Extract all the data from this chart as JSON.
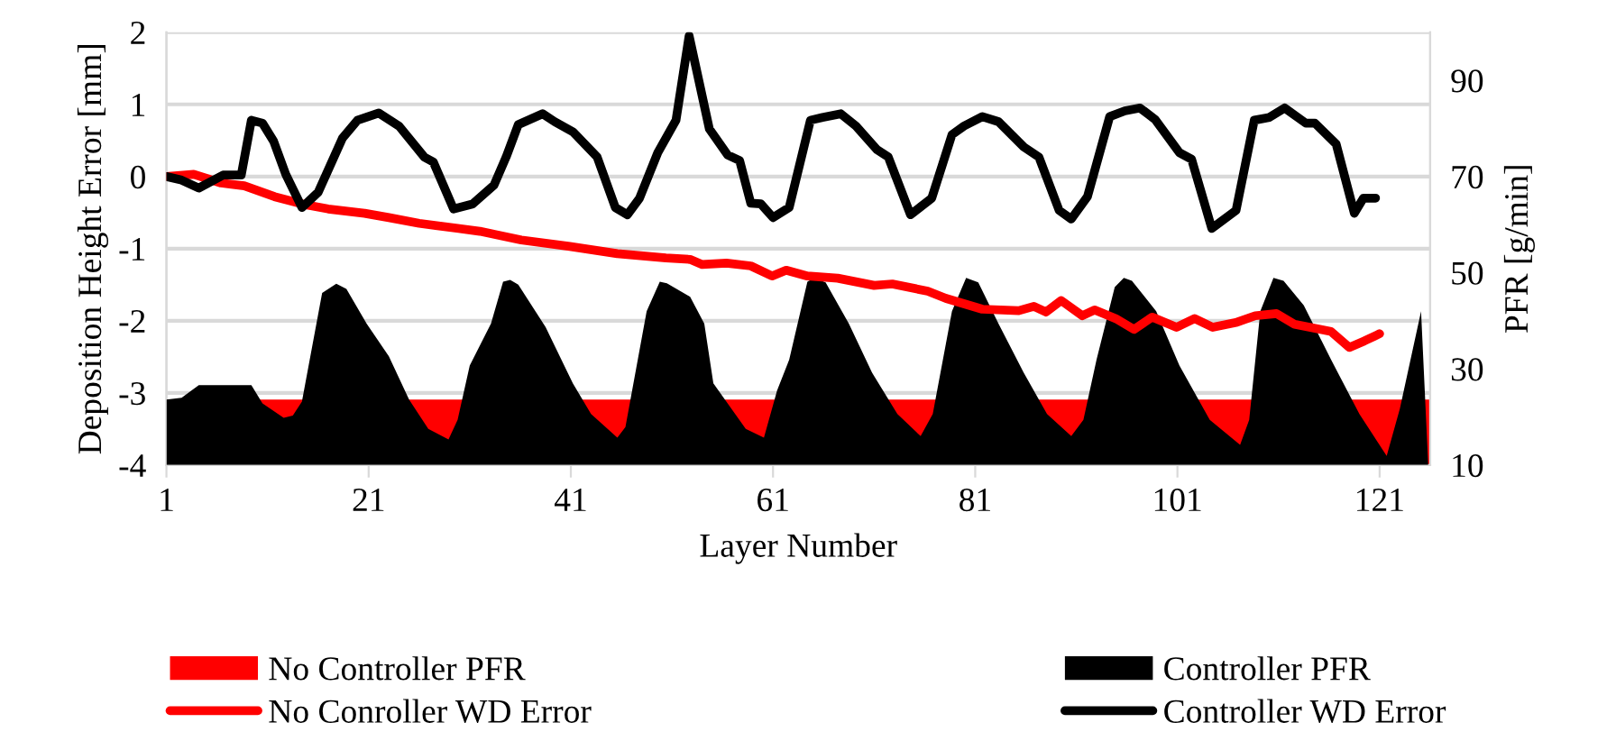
{
  "chart_data": {
    "type": "line",
    "xlabel": "Layer Number",
    "ylabel": "Deposition Height Error [mm]",
    "y2label": "PFR [g/min]",
    "xlim": [
      1,
      126
    ],
    "xticks": [
      1,
      21,
      41,
      61,
      81,
      101,
      121
    ],
    "ylim": [
      -4,
      2
    ],
    "yticks": [
      -4,
      -3,
      -2,
      -1,
      0,
      1,
      2
    ],
    "y2lim": [
      10,
      100
    ],
    "y2ticks": [
      10,
      30,
      50,
      70,
      90
    ],
    "grid": "y",
    "legend": "bottom",
    "series": [
      {
        "name": "No Controller PFR",
        "type": "area",
        "axis": "y2",
        "color": "#ff0000",
        "x": [
          1,
          126
        ],
        "values": [
          23.6,
          23.6
        ]
      },
      {
        "name": "Controller PFR",
        "type": "area",
        "axis": "y2",
        "color": "#000000",
        "x": [
          1,
          2.5,
          4.2,
          9.4,
          10.5,
          12.6,
          13.5,
          14.4,
          16.4,
          17.8,
          18.8,
          20.8,
          23,
          25,
          26.9,
          28.9,
          29.8,
          31,
          33.1,
          34.3,
          35,
          35.8,
          38.5,
          41.2,
          43,
          45.6,
          46.4,
          48.5,
          49.8,
          50.5,
          52.8,
          54.2,
          55.1,
          58.3,
          60.1,
          61.4,
          62.6,
          64.4,
          65.1,
          66.2,
          68.5,
          70.8,
          73.3,
          75.6,
          76.8,
          78.7,
          80.1,
          81.3,
          83.3,
          85.8,
          88.1,
          90.5,
          91.7,
          93,
          94.8,
          95.7,
          96.5,
          98.9,
          101.2,
          104.2,
          107.2,
          108.1,
          109.2,
          110.5,
          111.5,
          113.5,
          116.2,
          119,
          121.7,
          123,
          125.1,
          125.8
        ],
        "values": [
          23.6,
          24,
          26.6,
          26.6,
          22.8,
          19.8,
          20.3,
          23.2,
          45.8,
          47.7,
          46.6,
          39.4,
          32.6,
          23.6,
          17.5,
          15.3,
          19.4,
          30.7,
          39.4,
          48.1,
          48.5,
          47.5,
          38.7,
          27,
          20.6,
          15.7,
          17.9,
          42,
          48.1,
          47.8,
          45,
          39.4,
          27,
          17.5,
          15.7,
          25.5,
          31.9,
          48.1,
          48.9,
          48,
          39.4,
          29.2,
          20.6,
          16,
          20.6,
          42,
          48.9,
          48,
          39.4,
          29.2,
          20.6,
          16,
          19.4,
          31.9,
          47,
          48.9,
          48.3,
          42,
          30.7,
          19.4,
          14.2,
          19.4,
          42,
          48.9,
          48.3,
          43.2,
          31.9,
          20.6,
          11.9,
          21.7,
          42,
          10.4
        ]
      },
      {
        "name": "No Conroller WD Error",
        "axis": "y",
        "color": "#ff0000",
        "x": [
          1,
          3.7,
          6.4,
          8.7,
          11.7,
          14.7,
          17,
          20.6,
          23,
          26,
          32,
          36.1,
          40.9,
          45.6,
          50.4,
          52.8,
          54,
          56.4,
          58.8,
          60.9,
          62.3,
          64.4,
          67.4,
          71,
          72.8,
          76.3,
          78.1,
          81.7,
          85.3,
          86.8,
          88,
          89.5,
          91.6,
          92.8,
          94.9,
          96.7,
          98.5,
          100.9,
          102.7,
          104.5,
          106.9,
          108.7,
          110.8,
          112.6,
          116.2,
          118,
          119.5,
          121
        ],
        "values": [
          0,
          0.03,
          -0.09,
          -0.13,
          -0.28,
          -0.39,
          -0.45,
          -0.51,
          -0.57,
          -0.65,
          -0.76,
          -0.88,
          -0.97,
          -1.07,
          -1.13,
          -1.15,
          -1.22,
          -1.2,
          -1.24,
          -1.38,
          -1.3,
          -1.38,
          -1.41,
          -1.51,
          -1.49,
          -1.59,
          -1.69,
          -1.84,
          -1.86,
          -1.8,
          -1.88,
          -1.72,
          -1.93,
          -1.85,
          -1.97,
          -2.12,
          -1.95,
          -2.09,
          -1.97,
          -2.09,
          -2.02,
          -1.93,
          -1.9,
          -2.05,
          -2.15,
          -2.37,
          -2.28,
          -2.18
        ]
      },
      {
        "name": "Controller WD Error",
        "axis": "y",
        "color": "#000000",
        "x": [
          1,
          2.5,
          4.2,
          6.6,
          8.4,
          9.4,
          10.5,
          11.6,
          12.8,
          14.4,
          16,
          18.4,
          19.9,
          22,
          24,
          26.5,
          27.4,
          29.4,
          31.3,
          33.4,
          34.6,
          35.8,
          38.2,
          39.4,
          41.2,
          43.6,
          45.4,
          46.6,
          47.8,
          49.6,
          51.4,
          52.7,
          54.7,
          56.5,
          57.7,
          58.8,
          59.8,
          61,
          62.6,
          64.7,
          65.9,
          67.7,
          69.2,
          71.3,
          72.4,
          74.6,
          76.7,
          78.7,
          79.9,
          81.7,
          83.3,
          85.8,
          87.3,
          89.3,
          90.5,
          92.1,
          94.3,
          95.8,
          97.3,
          98.8,
          101.2,
          102.4,
          104.4,
          106.8,
          108.6,
          110.1,
          111.6,
          113.7,
          114.6,
          116.7,
          118.5,
          119.4,
          120.6
        ],
        "values": [
          0,
          -0.05,
          -0.16,
          0.02,
          0.02,
          0.78,
          0.74,
          0.49,
          0.03,
          -0.43,
          -0.22,
          0.53,
          0.78,
          0.88,
          0.7,
          0.27,
          0.2,
          -0.45,
          -0.38,
          -0.12,
          0.27,
          0.72,
          0.87,
          0.76,
          0.62,
          0.27,
          -0.43,
          -0.53,
          -0.3,
          0.33,
          0.78,
          1.95,
          0.66,
          0.3,
          0.22,
          -0.37,
          -0.38,
          -0.57,
          -0.43,
          0.78,
          0.82,
          0.87,
          0.7,
          0.37,
          0.27,
          -0.53,
          -0.3,
          0.58,
          0.7,
          0.83,
          0.76,
          0.41,
          0.27,
          -0.47,
          -0.59,
          -0.28,
          0.83,
          0.91,
          0.95,
          0.79,
          0.33,
          0.24,
          -0.72,
          -0.47,
          0.78,
          0.82,
          0.95,
          0.74,
          0.74,
          0.45,
          -0.51,
          -0.3,
          -0.3
        ]
      }
    ]
  }
}
